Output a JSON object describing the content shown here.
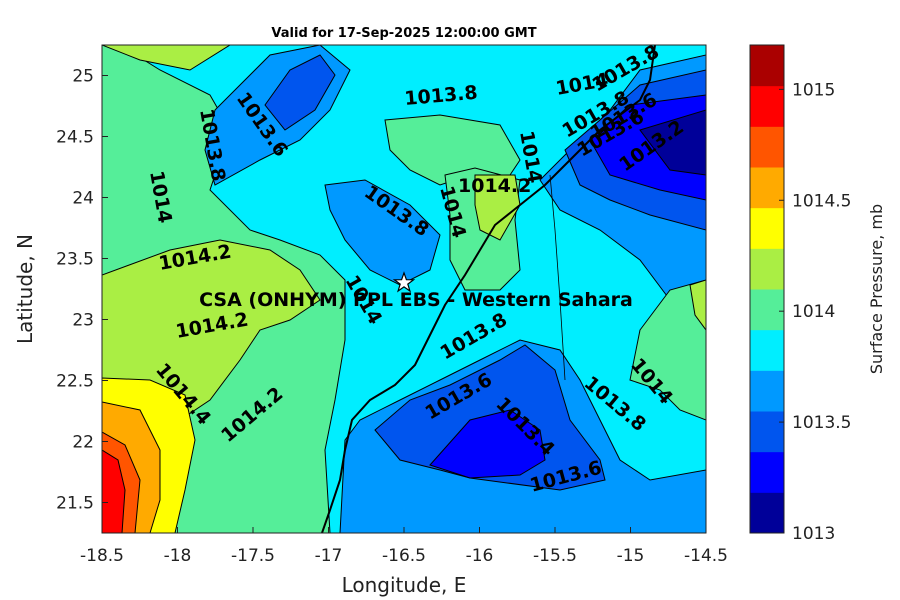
{
  "title": "Valid for 17-Sep-2025 12:00:00 GMT",
  "x_axis": {
    "label": "Longitude, E",
    "ticks": [
      "-18.5",
      "-18",
      "-17.5",
      "-17",
      "-16.5",
      "-16",
      "-15.5",
      "-15",
      "-14.5"
    ]
  },
  "y_axis": {
    "label": "Latitude, N",
    "ticks": [
      "25",
      "24.5",
      "24",
      "23.5",
      "23",
      "22.5",
      "22",
      "21.5"
    ]
  },
  "colorbar": {
    "label": "Surface Pressure, mb",
    "ticks": [
      "1015",
      "1014.5",
      "1014",
      "1013.5",
      "1013"
    ],
    "colors": [
      "#000099",
      "#0000ff",
      "#0055ee",
      "#0099ff",
      "#00eeff",
      "#55ee99",
      "#aaee44",
      "#ffff00",
      "#ffaa00",
      "#ff5500",
      "#ff0000",
      "#aa0000"
    ]
  },
  "station": {
    "label": "CSA (ONHYM) PPL EBS - Western Sahara",
    "lon": -16.5,
    "lat": 23.3
  },
  "contour_labels": [
    "1013.6",
    "1013.8",
    "1014",
    "1013.8",
    "1014",
    "1013.8",
    "1014.2",
    "1013.8",
    "1014",
    "1014.2",
    "1014",
    "1014.2",
    "1014",
    "1013.8",
    "1014.4",
    "1014.2",
    "1013.6",
    "1013.4",
    "1013.6",
    "1013.8",
    "1014",
    "1013.8",
    "1013.6",
    "1013.6",
    "1013.2"
  ]
}
